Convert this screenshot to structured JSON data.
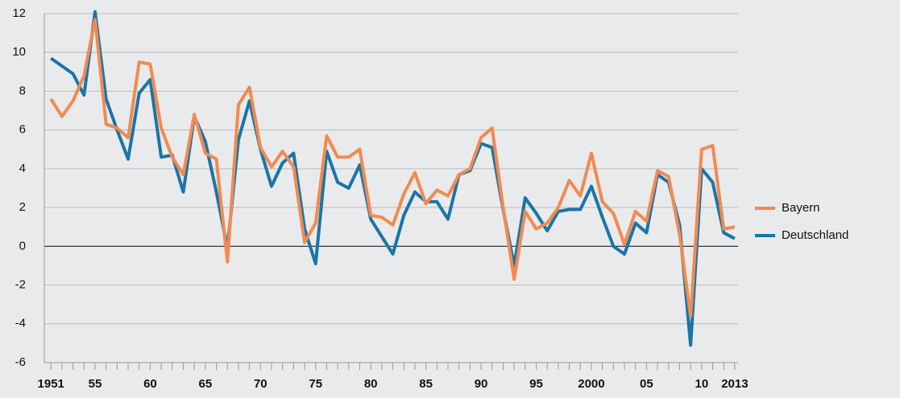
{
  "chart_data": {
    "type": "line",
    "x": [
      1951,
      1952,
      1953,
      1954,
      1955,
      1956,
      1957,
      1958,
      1959,
      1960,
      1961,
      1962,
      1963,
      1964,
      1965,
      1966,
      1967,
      1968,
      1969,
      1970,
      1971,
      1972,
      1973,
      1974,
      1975,
      1976,
      1977,
      1978,
      1979,
      1980,
      1981,
      1982,
      1983,
      1984,
      1985,
      1986,
      1987,
      1988,
      1989,
      1990,
      1991,
      1992,
      1993,
      1994,
      1995,
      1996,
      1997,
      1998,
      1999,
      2000,
      2001,
      2002,
      2003,
      2004,
      2005,
      2006,
      2007,
      2008,
      2009,
      2010,
      2011,
      2012,
      2013
    ],
    "series": [
      {
        "name": "Bayern",
        "color": "#f28a50",
        "values": [
          7.6,
          6.7,
          7.5,
          8.8,
          11.7,
          6.3,
          6.1,
          5.6,
          9.5,
          9.4,
          6.1,
          4.6,
          3.7,
          6.8,
          4.8,
          4.5,
          -0.8,
          7.3,
          8.2,
          5.1,
          4.1,
          4.9,
          4.1,
          0.2,
          1.2,
          5.7,
          4.6,
          4.6,
          5.0,
          1.6,
          1.5,
          1.1,
          2.7,
          3.8,
          2.2,
          2.9,
          2.6,
          3.7,
          4.0,
          5.6,
          6.1,
          2.0,
          -1.7,
          1.8,
          0.9,
          1.2,
          2.0,
          3.4,
          2.6,
          4.8,
          2.3,
          1.7,
          0.1,
          1.8,
          1.3,
          3.9,
          3.6,
          0.6,
          -3.6,
          5.0,
          5.2,
          0.9,
          1.0
        ]
      },
      {
        "name": "Deutschland",
        "color": "#1a75a8",
        "values": [
          9.7,
          9.3,
          8.9,
          7.8,
          12.1,
          7.6,
          6.0,
          4.5,
          7.9,
          8.6,
          4.6,
          4.7,
          2.8,
          6.7,
          5.4,
          2.8,
          -0.1,
          5.5,
          7.5,
          5.0,
          3.1,
          4.3,
          4.8,
          0.9,
          -0.9,
          4.9,
          3.3,
          3.0,
          4.2,
          1.4,
          0.5,
          -0.4,
          1.6,
          2.8,
          2.3,
          2.3,
          1.4,
          3.7,
          3.9,
          5.3,
          5.1,
          1.9,
          -1.0,
          2.5,
          1.7,
          0.8,
          1.8,
          1.9,
          1.9,
          3.1,
          1.5,
          0.0,
          -0.4,
          1.2,
          0.7,
          3.7,
          3.3,
          1.1,
          -5.1,
          4.0,
          3.3,
          0.7,
          0.4
        ]
      }
    ],
    "xlim": [
      1950.4,
      2013.3
    ],
    "xticks": [
      1951,
      {
        "value": 1955,
        "label": "55"
      },
      {
        "value": 1960,
        "label": "60"
      },
      {
        "value": 1965,
        "label": "65"
      },
      {
        "value": 1970,
        "label": "70"
      },
      {
        "value": 1975,
        "label": "75"
      },
      {
        "value": 1980,
        "label": "80"
      },
      {
        "value": 1985,
        "label": "85"
      },
      {
        "value": 1990,
        "label": "90"
      },
      2000,
      {
        "value": 1995,
        "label": "95"
      },
      {
        "value": 2005,
        "label": "05"
      },
      {
        "value": 2010,
        "label": "10"
      },
      2013
    ],
    "ylim": [
      -6,
      12
    ],
    "yticks": [
      -6,
      -4,
      -2,
      0,
      2,
      4,
      6,
      8,
      10,
      12
    ],
    "grid": true,
    "legend": "right"
  }
}
